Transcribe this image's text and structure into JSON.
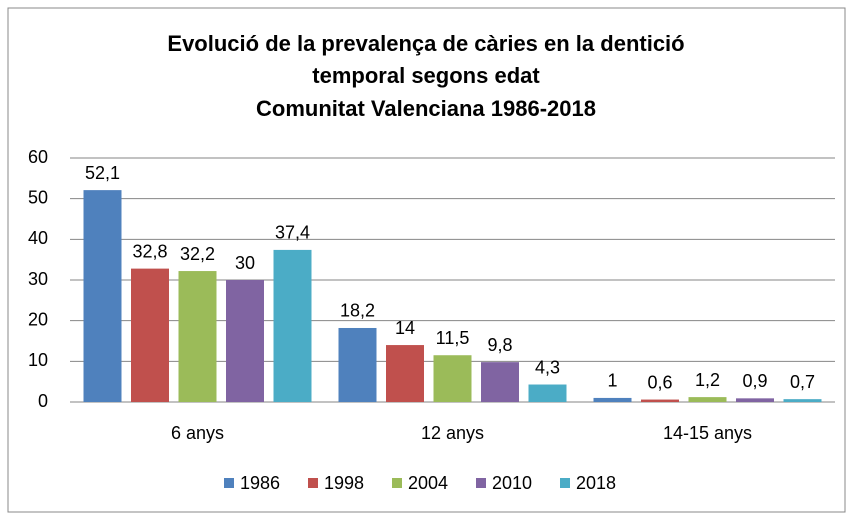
{
  "chart_data": {
    "type": "bar",
    "title": [
      "Evolució de la prevalença de càries en la dentició",
      "temporal segons edat",
      "Comunitat Valenciana 1986-2018"
    ],
    "categories": [
      "6 anys",
      "12 anys",
      "14-15 anys"
    ],
    "series": [
      {
        "name": "1986",
        "color": "#4f81bd",
        "values": [
          52.1,
          18.2,
          1
        ],
        "value_labels": [
          "52,1",
          "18,2",
          "1"
        ]
      },
      {
        "name": "1998",
        "color": "#c0504d",
        "values": [
          32.8,
          14,
          0.6
        ],
        "value_labels": [
          "32,8",
          "14",
          "0,6"
        ]
      },
      {
        "name": "2004",
        "color": "#9bbb59",
        "values": [
          32.2,
          11.5,
          1.2
        ],
        "value_labels": [
          "32,2",
          "11,5",
          "1,2"
        ]
      },
      {
        "name": "2010",
        "color": "#8064a2",
        "values": [
          30,
          9.8,
          0.9
        ],
        "value_labels": [
          "30",
          "9,8",
          "0,9"
        ]
      },
      {
        "name": "2018",
        "color": "#4bacc6",
        "values": [
          37.4,
          4.3,
          0.7
        ],
        "value_labels": [
          "37,4",
          "4,3",
          "0,7"
        ]
      }
    ],
    "ylim": [
      0,
      60
    ],
    "yticks": [
      0,
      10,
      20,
      30,
      40,
      50,
      60
    ],
    "grid": true,
    "legend": "bottom"
  }
}
